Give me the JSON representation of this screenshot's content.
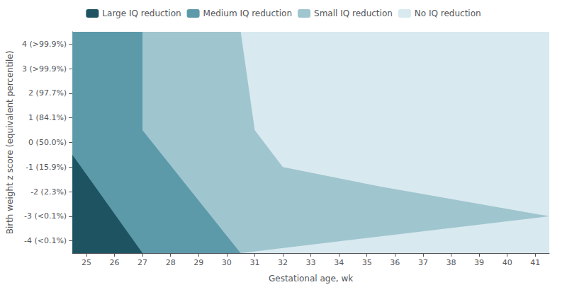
{
  "chart_data": {
    "type": "region",
    "xlabel": "Gestational age, wk",
    "ylabel": "Birth weight z score (equivalent percentile)",
    "xlim": [
      24.5,
      41.5
    ],
    "ylim": [
      -4.5,
      4.5
    ],
    "xticks": [
      25,
      26,
      27,
      28,
      29,
      30,
      31,
      32,
      33,
      34,
      35,
      36,
      37,
      38,
      39,
      40,
      41
    ],
    "yticks": [
      {
        "value": -4,
        "label": "-4 (<0.1%)"
      },
      {
        "value": -3,
        "label": "-3 (<0.1%)"
      },
      {
        "value": -2,
        "label": "-2 (2.3%)"
      },
      {
        "value": -1,
        "label": "-1 (15.9%)"
      },
      {
        "value": 0,
        "label": "0 (50.0%)"
      },
      {
        "value": 1,
        "label": "1 (84.1%)"
      },
      {
        "value": 2,
        "label": "2 (97.7%)"
      },
      {
        "value": 3,
        "label": "3 (>99.9%)"
      },
      {
        "value": 4,
        "label": "4 (>99.9%)"
      }
    ],
    "series": [
      {
        "name": "Large IQ reduction",
        "color": "#1e5462"
      },
      {
        "name": "Medium IQ reduction",
        "color": "#5c9aaa"
      },
      {
        "name": "Small IQ reduction",
        "color": "#9fc5cf"
      },
      {
        "name": "No IQ reduction",
        "color": "#d8e9ef"
      }
    ],
    "boundary_large_medium": [
      [
        24.5,
        -0.5
      ],
      [
        27.0,
        -4.5
      ]
    ],
    "boundary_medium_small": [
      [
        27.0,
        4.5
      ],
      [
        27.0,
        0.5
      ],
      [
        30.5,
        -4.5
      ]
    ],
    "boundary_small_none": [
      [
        30.5,
        4.5
      ],
      [
        31.0,
        0.5
      ],
      [
        32.0,
        -1.0
      ],
      [
        35.5,
        -1.8
      ],
      [
        41.5,
        -3.0
      ]
    ],
    "legend": "top",
    "grid": false
  }
}
